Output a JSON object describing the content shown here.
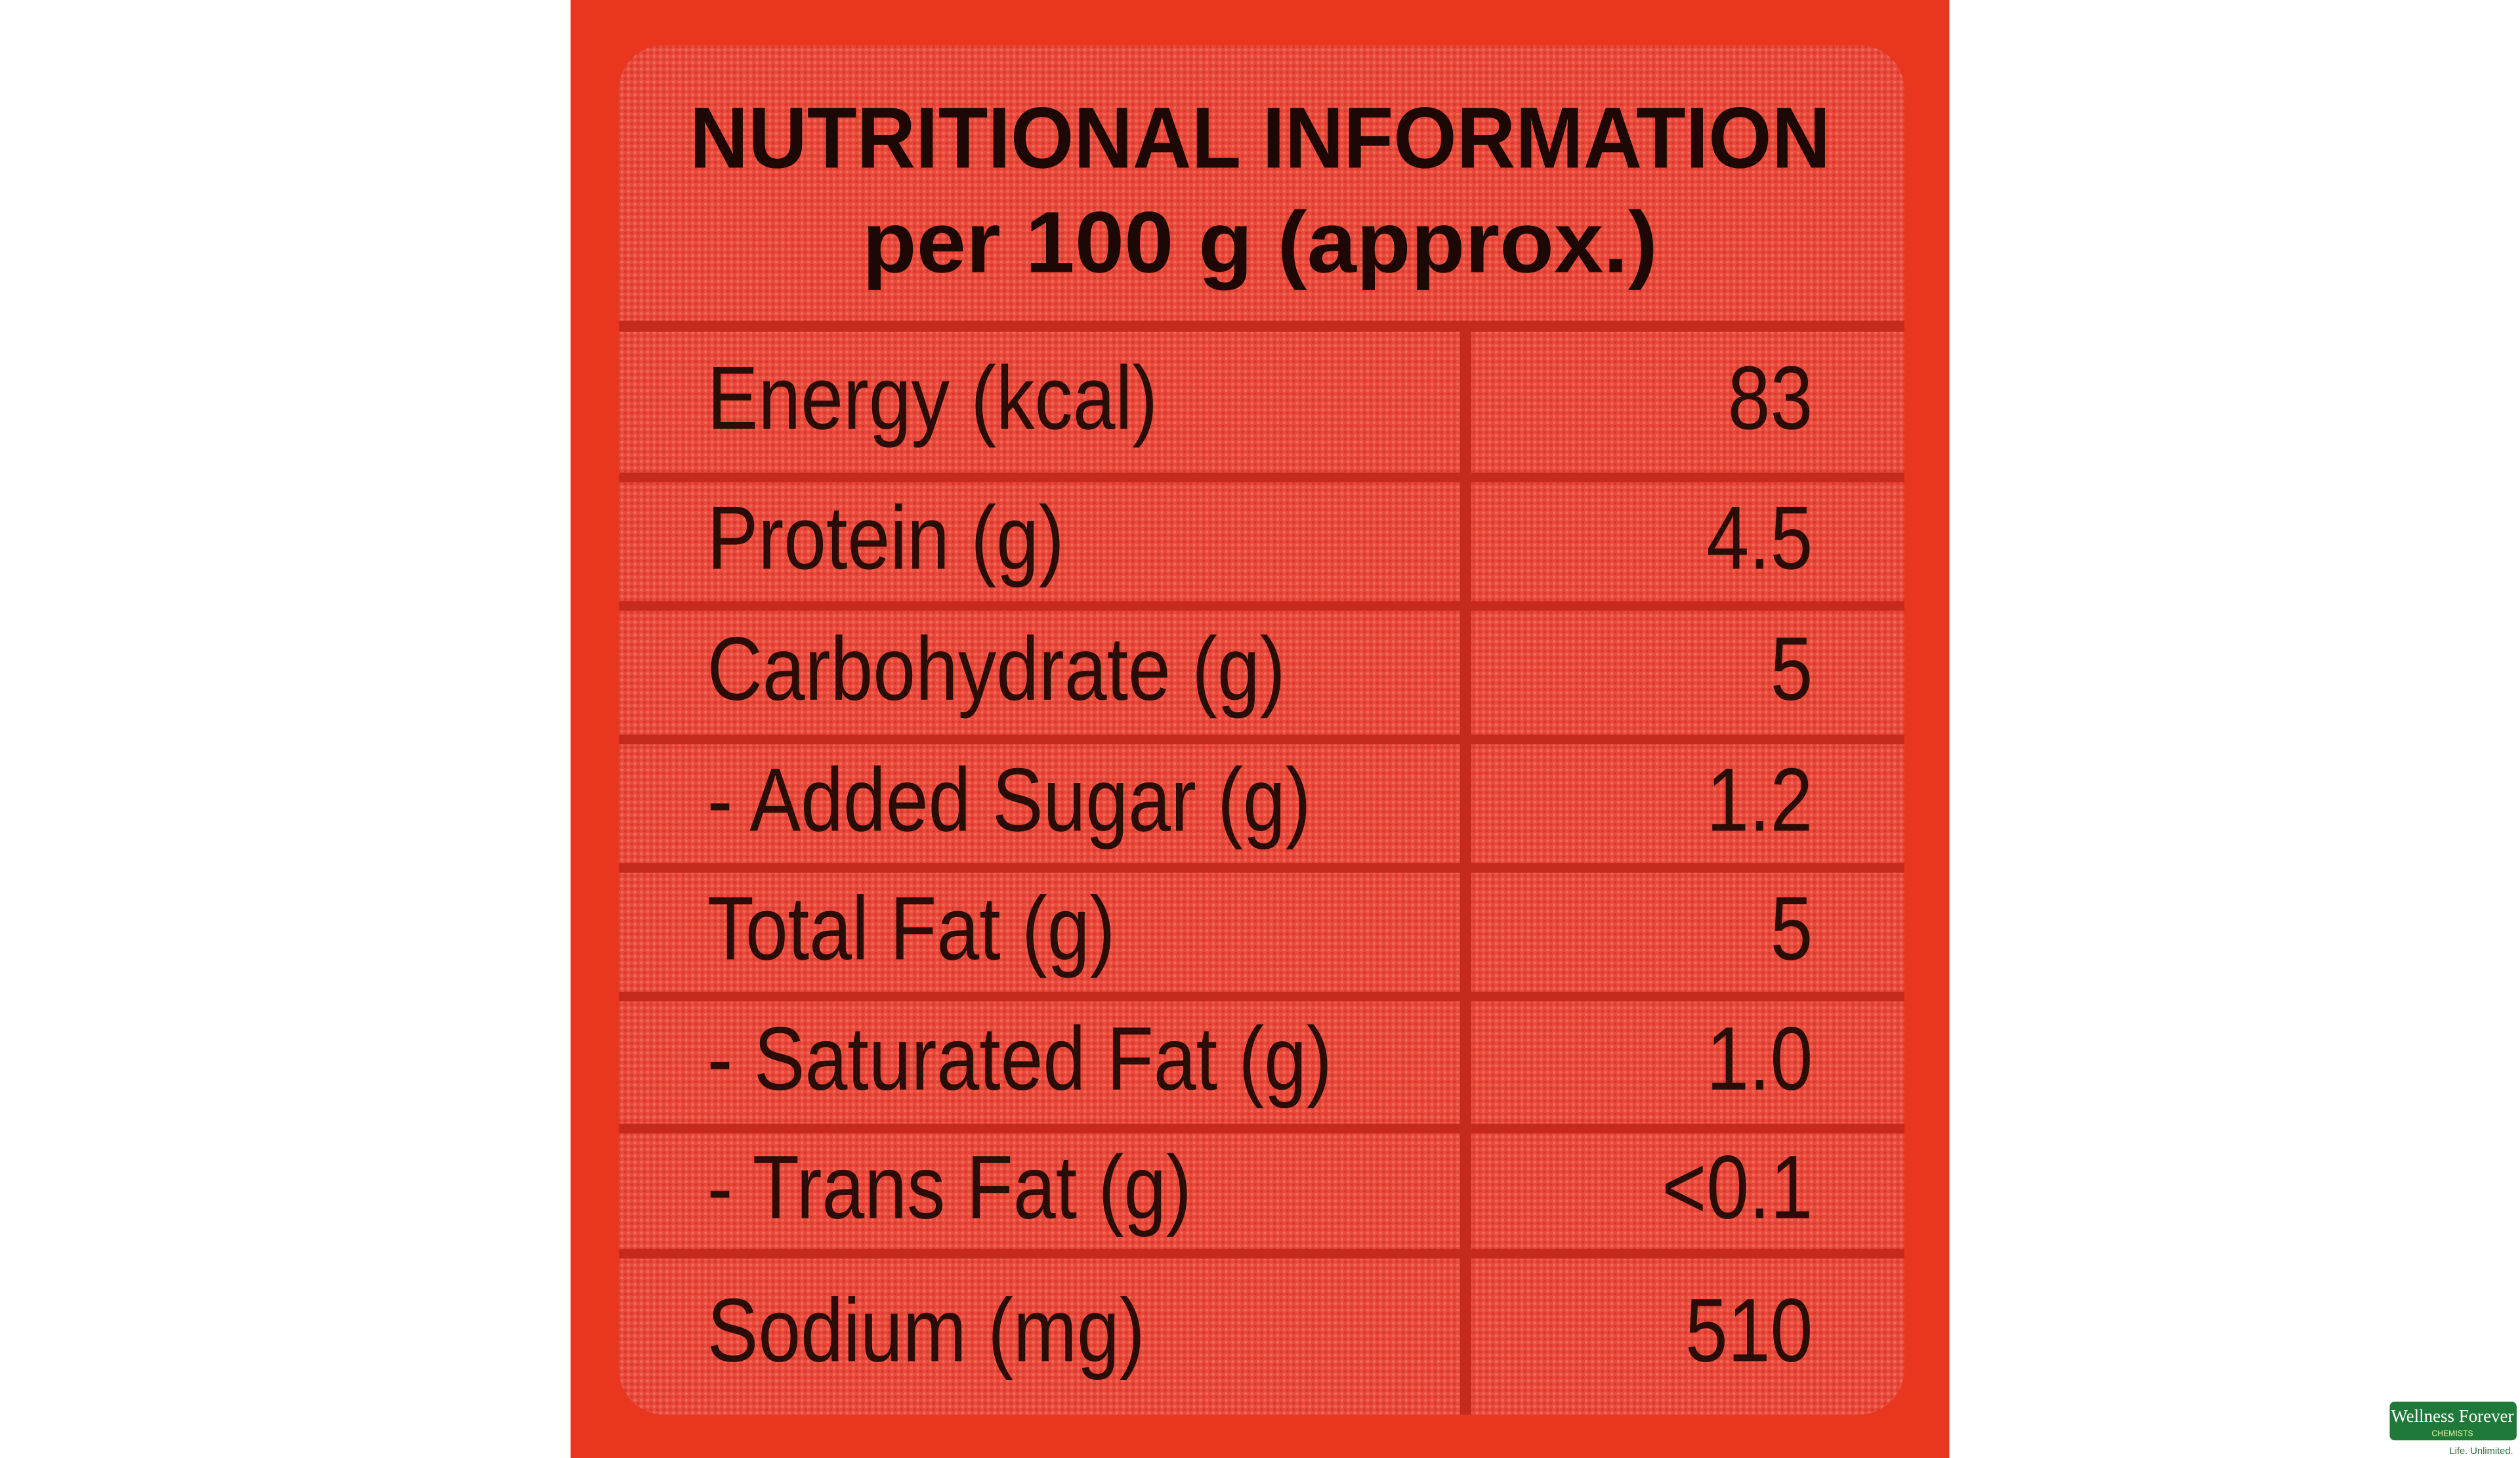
{
  "header": {
    "title": [
      "NUTRITIONAL INFORMATION",
      "per 100 g (approx.)"
    ]
  },
  "table": {
    "rows": [
      [
        "Energy (kcal)",
        "83"
      ],
      [
        "Protein (g)",
        "4.5"
      ],
      [
        "Carbohydrate (g)",
        "5"
      ],
      [
        "- Added Sugar (g)",
        "1.2"
      ],
      [
        "Total Fat (g)",
        "5"
      ],
      [
        "- Saturated Fat (g)",
        "1.0"
      ],
      [
        "- Trans Fat (g)",
        "<0.1"
      ],
      [
        "Sodium (mg)",
        "510"
      ]
    ]
  },
  "logo": {
    "brand": "Wellness Forever",
    "sub": "CHEMISTS",
    "tagline": "Life. Unlimited."
  }
}
